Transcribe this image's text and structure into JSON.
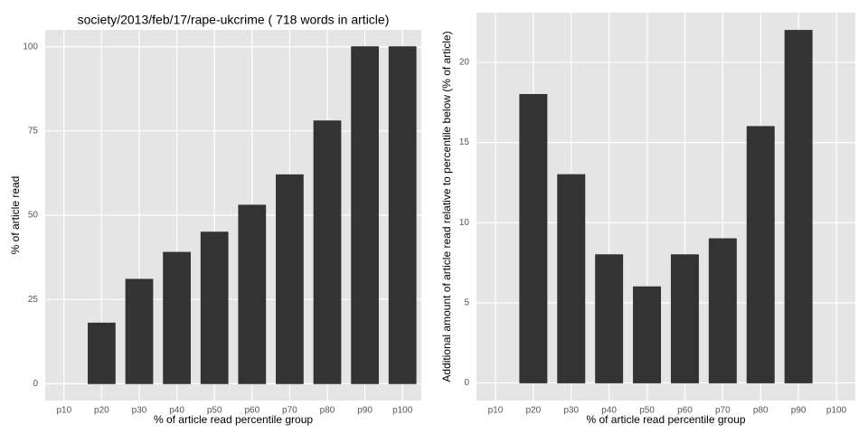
{
  "chart_data": [
    {
      "type": "bar",
      "title": "society/2013/feb/17/rape-ukcrime ( 718 words in article)",
      "x_label": "% of article read percentile group",
      "y_label": "% of article read",
      "categories": [
        "p10",
        "p20",
        "p30",
        "p40",
        "p50",
        "p60",
        "p70",
        "p80",
        "p90",
        "p100"
      ],
      "values": [
        0,
        18,
        31,
        39,
        45,
        53,
        62,
        78,
        100,
        100
      ],
      "color": "#333333",
      "ylim": [
        -5,
        105
      ],
      "yticks": [
        0,
        25,
        50,
        75,
        100
      ],
      "grid": true
    },
    {
      "type": "bar",
      "x_label": "% of article read percentile group",
      "y_label": "Additional amount of article read relative to percentile below (% of article)",
      "categories": [
        "p10",
        "p20",
        "p30",
        "p40",
        "p50",
        "p60",
        "p70",
        "p80",
        "p90",
        "p100"
      ],
      "values": [
        0,
        18,
        13,
        8,
        6,
        8,
        9,
        16,
        22,
        0
      ],
      "color": "#333333",
      "ylim": [
        -1.1,
        23.1
      ],
      "yticks": [
        0,
        5,
        10,
        15,
        20
      ],
      "grid": true
    }
  ]
}
